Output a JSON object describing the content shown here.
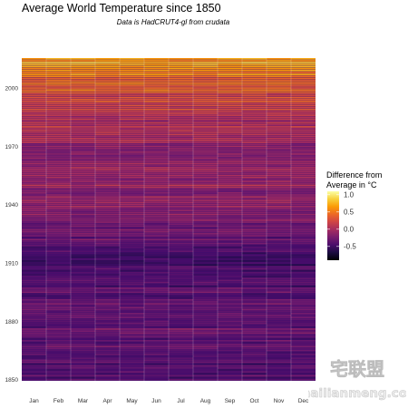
{
  "chart_data": {
    "type": "heatmap",
    "title": "Average World Temperature since 1850",
    "subtitle": "Data is HadCRUT4-gl from crudata",
    "xlabel": "",
    "ylabel": "",
    "x_categories": [
      "Jan",
      "Feb",
      "Mar",
      "Apr",
      "May",
      "Jun",
      "Jul",
      "Aug",
      "Sep",
      "Oct",
      "Nov",
      "Dec"
    ],
    "y_range": [
      1850,
      2015
    ],
    "y_ticks": [
      "1850",
      "1880",
      "1910",
      "1940",
      "1970",
      "2000"
    ],
    "legend": {
      "title_line1": "Difference from",
      "title_line2": "Average in °C",
      "placement": "right",
      "ticks": [
        "1.0",
        "0.5",
        "0.0",
        "-0.5"
      ],
      "tick_values": [
        1.0,
        0.5,
        0.0,
        -0.5
      ],
      "range": [
        -0.9,
        1.1
      ]
    },
    "palette": [
      "#000004",
      "#1b0c41",
      "#4a0c6b",
      "#781c6d",
      "#a52c60",
      "#cf4446",
      "#ed6925",
      "#fb9b06",
      "#f7d13d",
      "#fcffa4"
    ],
    "trend": {
      "description_points": [
        {
          "year": 1850,
          "value": -0.42
        },
        {
          "year": 1880,
          "value": -0.3
        },
        {
          "year": 1910,
          "value": -0.48
        },
        {
          "year": 1940,
          "value": -0.05
        },
        {
          "year": 1970,
          "value": -0.08
        },
        {
          "year": 1990,
          "value": 0.22
        },
        {
          "year": 2000,
          "value": 0.4
        },
        {
          "year": 2015,
          "value": 0.72
        }
      ],
      "noise": 0.17
    },
    "grid": true
  },
  "watermark": {
    "text": "zhailianmeng.com",
    "logo_text": "宅联盟"
  }
}
